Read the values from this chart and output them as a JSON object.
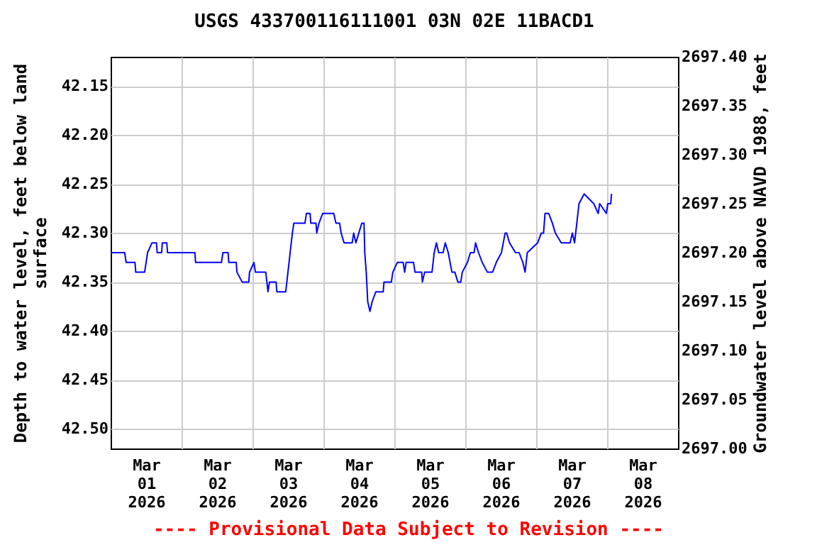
{
  "chart_data": {
    "type": "line",
    "title": "USGS 433700116111001 03N 02E 11BACD1",
    "ylabel": "Depth to water level, feet below land surface",
    "y2label": "Groundwater level above NAVD 1988, feet",
    "annotations": [
      "---- Provisional Data Subject to Revision ----"
    ],
    "x": [
      "2026-03-01T00:00",
      "2026-03-01T04:45",
      "2026-03-01T05:15",
      "2026-03-01T08:15",
      "2026-03-01T08:30",
      "2026-03-01T11:30",
      "2026-03-01T12:00",
      "2026-03-01T12:30",
      "2026-03-01T14:00",
      "2026-03-01T15:30",
      "2026-03-01T15:45",
      "2026-03-01T17:15",
      "2026-03-01T17:30",
      "2026-03-01T19:00",
      "2026-03-01T19:15",
      "2026-03-02T04:30",
      "2026-03-02T04:45",
      "2026-03-02T13:30",
      "2026-03-02T14:00",
      "2026-03-02T15:45",
      "2026-03-02T16:00",
      "2026-03-02T18:30",
      "2026-03-02T18:45",
      "2026-03-02T20:30",
      "2026-03-02T22:45",
      "2026-03-02T23:00",
      "2026-03-03T00:30",
      "2026-03-03T01:00",
      "2026-03-03T04:30",
      "2026-03-03T05:15",
      "2026-03-03T05:45",
      "2026-03-03T08:00",
      "2026-03-03T08:15",
      "2026-03-03T11:15",
      "2026-03-03T12:00",
      "2026-03-03T12:45",
      "2026-03-03T13:30",
      "2026-03-03T14:00",
      "2026-03-03T16:00",
      "2026-03-03T17:45",
      "2026-03-03T18:15",
      "2026-03-03T19:30",
      "2026-03-03T19:45",
      "2026-03-03T21:30",
      "2026-03-03T21:45",
      "2026-03-03T22:30",
      "2026-03-03T23:45",
      "2026-03-04T03:30",
      "2026-03-04T04:15",
      "2026-03-04T05:30",
      "2026-03-04T06:00",
      "2026-03-04T07:00",
      "2026-03-04T09:45",
      "2026-03-04T10:15",
      "2026-03-04T11:00",
      "2026-03-04T12:00",
      "2026-03-04T13:00",
      "2026-03-04T13:45",
      "2026-03-04T14:00",
      "2026-03-04T14:30",
      "2026-03-04T15:00",
      "2026-03-04T15:45",
      "2026-03-04T16:30",
      "2026-03-04T17:45",
      "2026-03-04T20:15",
      "2026-03-04T20:30",
      "2026-03-04T23:00",
      "2026-03-04T23:30",
      "2026-03-05T01:00",
      "2026-03-05T03:00",
      "2026-03-05T03:30",
      "2026-03-05T04:00",
      "2026-03-05T06:30",
      "2026-03-05T07:00",
      "2026-03-05T09:15",
      "2026-03-05T09:30",
      "2026-03-05T10:15",
      "2026-03-05T12:45",
      "2026-03-05T13:30",
      "2026-03-05T14:15",
      "2026-03-05T15:00",
      "2026-03-05T16:30",
      "2026-03-05T17:15",
      "2026-03-05T18:15",
      "2026-03-05T19:30",
      "2026-03-05T20:30",
      "2026-03-05T21:30",
      "2026-03-05T22:30",
      "2026-03-05T23:00",
      "2026-03-06T00:45",
      "2026-03-06T01:45",
      "2026-03-06T03:00",
      "2026-03-06T03:30",
      "2026-03-06T04:30",
      "2026-03-06T05:45",
      "2026-03-06T07:30",
      "2026-03-06T09:15",
      "2026-03-06T10:30",
      "2026-03-06T12:15",
      "2026-03-06T13:30",
      "2026-03-06T14:00",
      "2026-03-06T15:00",
      "2026-03-06T17:00",
      "2026-03-06T18:15",
      "2026-03-06T19:30",
      "2026-03-06T20:15",
      "2026-03-06T21:00",
      "2026-03-07T00:30",
      "2026-03-07T01:45",
      "2026-03-07T02:30",
      "2026-03-07T03:00",
      "2026-03-07T04:15",
      "2026-03-07T05:30",
      "2026-03-07T06:30",
      "2026-03-07T08:30",
      "2026-03-07T11:30",
      "2026-03-07T12:15",
      "2026-03-07T13:00",
      "2026-03-07T13:45",
      "2026-03-07T14:30",
      "2026-03-07T16:15",
      "2026-03-07T19:30",
      "2026-03-07T21:00",
      "2026-03-07T21:30",
      "2026-03-07T23:45",
      "2026-03-08T00:15",
      "2026-03-08T01:15",
      "2026-03-08T01:30"
    ],
    "series": [
      {
        "color": "#0000ff",
        "values": [
          42.32,
          42.32,
          42.33,
          42.33,
          42.34,
          42.34,
          42.33,
          42.32,
          42.31,
          42.31,
          42.32,
          42.32,
          42.31,
          42.31,
          42.32,
          42.32,
          42.33,
          42.33,
          42.32,
          42.32,
          42.33,
          42.33,
          42.34,
          42.35,
          42.35,
          42.34,
          42.33,
          42.34,
          42.34,
          42.36,
          42.35,
          42.35,
          42.36,
          42.36,
          42.34,
          42.32,
          42.3,
          42.29,
          42.29,
          42.29,
          42.28,
          42.28,
          42.29,
          42.29,
          42.3,
          42.29,
          42.28,
          42.28,
          42.29,
          42.29,
          42.3,
          42.31,
          42.31,
          42.3,
          42.31,
          42.3,
          42.29,
          42.29,
          42.32,
          42.34,
          42.37,
          42.38,
          42.37,
          42.36,
          42.36,
          42.35,
          42.35,
          42.34,
          42.33,
          42.33,
          42.34,
          42.33,
          42.33,
          42.34,
          42.34,
          42.35,
          42.34,
          42.34,
          42.32,
          42.31,
          42.32,
          42.32,
          42.31,
          42.32,
          42.34,
          42.34,
          42.35,
          42.35,
          42.34,
          42.33,
          42.32,
          42.32,
          42.31,
          42.32,
          42.33,
          42.34,
          42.34,
          42.33,
          42.32,
          42.3,
          42.3,
          42.31,
          42.32,
          42.32,
          42.33,
          42.34,
          42.32,
          42.31,
          42.3,
          42.3,
          42.28,
          42.28,
          42.29,
          42.3,
          42.31,
          42.31,
          42.3,
          42.31,
          42.29,
          42.27,
          42.26,
          42.27,
          42.28,
          42.27,
          42.28,
          42.27,
          42.27,
          42.26
        ]
      }
    ],
    "xlim": [
      "2026-03-01",
      "2026-03-09"
    ],
    "xticks": [
      {
        "value": "2026-03-01T12:00",
        "label": "Mar 01 2026"
      },
      {
        "value": "2026-03-02T00:00",
        "label": null
      },
      {
        "value": "2026-03-02T12:00",
        "label": "Mar 02 2026"
      },
      {
        "value": "2026-03-03T00:00",
        "label": null
      },
      {
        "value": "2026-03-03T12:00",
        "label": "Mar 03 2026"
      },
      {
        "value": "2026-03-04T00:00",
        "label": null
      },
      {
        "value": "2026-03-04T12:00",
        "label": "Mar 04 2026"
      },
      {
        "value": "2026-03-05T00:00",
        "label": null
      },
      {
        "value": "2026-03-05T12:00",
        "label": "Mar 05 2026"
      },
      {
        "value": "2026-03-06T00:00",
        "label": null
      },
      {
        "value": "2026-03-06T12:00",
        "label": "Mar 06 2026"
      },
      {
        "value": "2026-03-07T00:00",
        "label": null
      },
      {
        "value": "2026-03-07T12:00",
        "label": "Mar 07 2026"
      },
      {
        "value": "2026-03-08T00:00",
        "label": null
      },
      {
        "value": "2026-03-08T12:00",
        "label": "Mar 08 2026"
      }
    ],
    "ylim": [
      42.52,
      42.12
    ],
    "yticks": [
      {
        "value": 42.15,
        "label": "42.15"
      },
      {
        "value": 42.2,
        "label": "42.20"
      },
      {
        "value": 42.25,
        "label": "42.25"
      },
      {
        "value": 42.3,
        "label": "42.30"
      },
      {
        "value": 42.35,
        "label": "42.35"
      },
      {
        "value": 42.4,
        "label": "42.40"
      },
      {
        "value": 42.45,
        "label": "42.45"
      },
      {
        "value": 42.5,
        "label": "42.50"
      }
    ],
    "y2lim": [
      2697.0,
      2697.4
    ],
    "y2ticks": [
      {
        "value": 2697.0,
        "label": "2697.00"
      },
      {
        "value": 2697.05,
        "label": "2697.05"
      },
      {
        "value": 2697.1,
        "label": "2697.10"
      },
      {
        "value": 2697.15,
        "label": "2697.15"
      },
      {
        "value": 2697.2,
        "label": "2697.20"
      },
      {
        "value": 2697.25,
        "label": "2697.25"
      },
      {
        "value": 2697.3,
        "label": "2697.30"
      },
      {
        "value": 2697.35,
        "label": "2697.35"
      },
      {
        "value": 2697.4,
        "label": "2697.40"
      }
    ],
    "grid": true
  }
}
